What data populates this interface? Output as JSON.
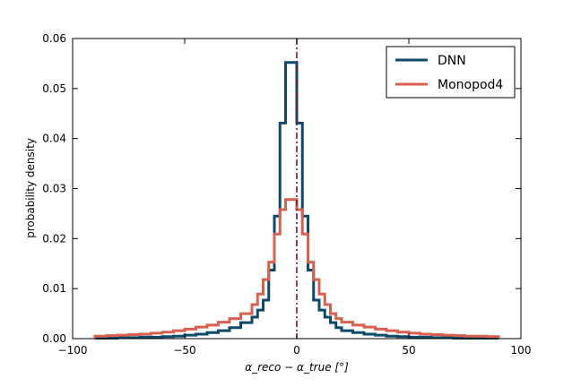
{
  "chart_data": {
    "type": "line",
    "step": true,
    "xlabel": "α_reco − α_true  [°]",
    "ylabel": "probability density",
    "xlim": [
      -100,
      100
    ],
    "ylim": [
      0,
      0.06
    ],
    "xticks": [
      -100,
      -50,
      0,
      50,
      100
    ],
    "xtick_labels": [
      "−100",
      "−50",
      "0",
      "50",
      "100"
    ],
    "yticks": [
      0,
      0.01,
      0.02,
      0.03,
      0.04,
      0.05,
      0.06
    ],
    "ytick_labels": [
      "0.00",
      "0.01",
      "0.02",
      "0.03",
      "0.04",
      "0.05",
      "0.06"
    ],
    "grid": false,
    "legend_position": "top-right",
    "reference_line": {
      "x": 0,
      "style": "dash-dot",
      "color": "#6e1b34"
    },
    "bin_edges": [
      -90,
      -85,
      -80,
      -75,
      -70,
      -65,
      -60,
      -55,
      -50,
      -45,
      -40,
      -35,
      -30,
      -25,
      -20,
      -17.5,
      -15,
      -12.5,
      -10,
      -7.5,
      -5,
      -2.5,
      0,
      2.5,
      5,
      7.5,
      10,
      12.5,
      15,
      17.5,
      20,
      25,
      30,
      35,
      40,
      45,
      50,
      55,
      60,
      65,
      70,
      75,
      80,
      85,
      90
    ],
    "series": [
      {
        "name": "DNN",
        "color": "#0b4a6b",
        "values": [
          0.0001,
          0.0001,
          0.0002,
          0.0002,
          0.0003,
          0.0003,
          0.0004,
          0.0005,
          0.0007,
          0.0009,
          0.0012,
          0.0016,
          0.0022,
          0.0032,
          0.0043,
          0.0057,
          0.0077,
          0.0137,
          0.0245,
          0.0431,
          0.0552,
          0.0552,
          0.0431,
          0.0245,
          0.0137,
          0.0077,
          0.0057,
          0.0043,
          0.0032,
          0.0022,
          0.0016,
          0.0012,
          0.0009,
          0.0007,
          0.0005,
          0.0004,
          0.0003,
          0.0003,
          0.0002,
          0.0002,
          0.0001,
          0.0001,
          0.0001,
          0.0001
        ]
      },
      {
        "name": "Monopod4",
        "color": "#d9604f",
        "values": [
          0.0005,
          0.0006,
          0.0007,
          0.0008,
          0.0009,
          0.0011,
          0.0013,
          0.0016,
          0.0019,
          0.0023,
          0.0027,
          0.0033,
          0.004,
          0.005,
          0.0068,
          0.0089,
          0.0118,
          0.0153,
          0.0209,
          0.0258,
          0.0278,
          0.0278,
          0.0258,
          0.0209,
          0.0153,
          0.0118,
          0.0089,
          0.0068,
          0.005,
          0.004,
          0.0033,
          0.0027,
          0.0023,
          0.0019,
          0.0016,
          0.0013,
          0.0011,
          0.0009,
          0.0008,
          0.0007,
          0.0006,
          0.0005,
          0.0005,
          0.0004
        ]
      }
    ]
  }
}
